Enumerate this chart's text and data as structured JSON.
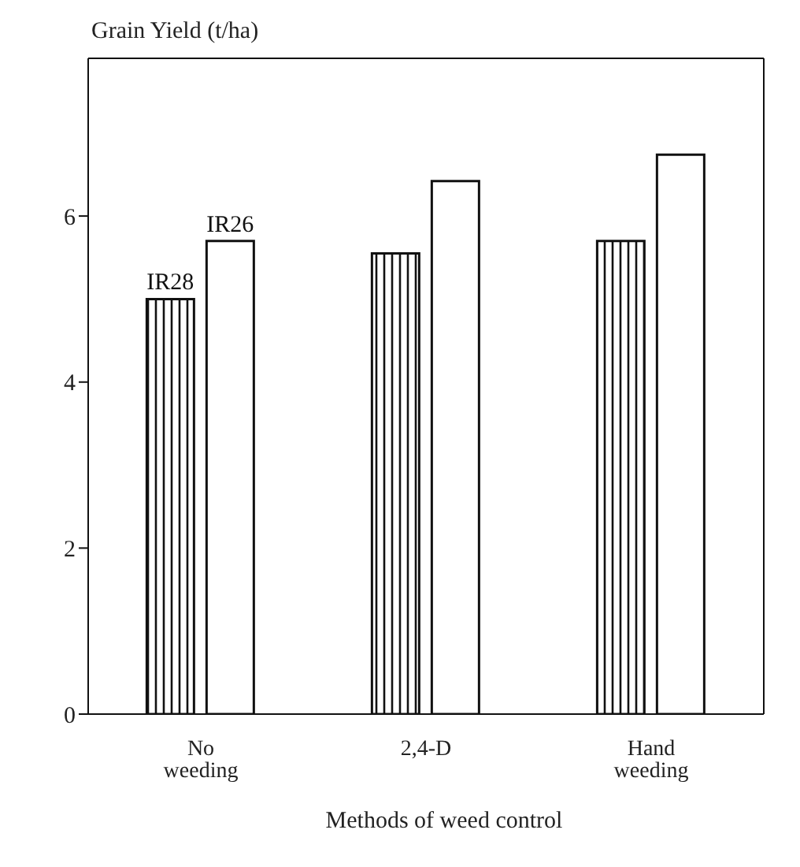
{
  "chart_data": {
    "type": "bar",
    "ylabel": "Grain Yield (t/ha)",
    "xlabel": "Methods of weed control",
    "categories": [
      "No weeding",
      "2,4-D",
      "Hand weeding"
    ],
    "series": [
      {
        "name": "IR28",
        "color": "#111111",
        "values": [
          5.0,
          5.55,
          5.7
        ]
      },
      {
        "name": "IR26",
        "color": "#ffffff",
        "values": [
          5.7,
          6.42,
          6.74
        ]
      }
    ],
    "ylim": [
      0,
      7.9
    ],
    "yticks": [
      0,
      2,
      4,
      6
    ],
    "grid": false,
    "legend": false
  }
}
